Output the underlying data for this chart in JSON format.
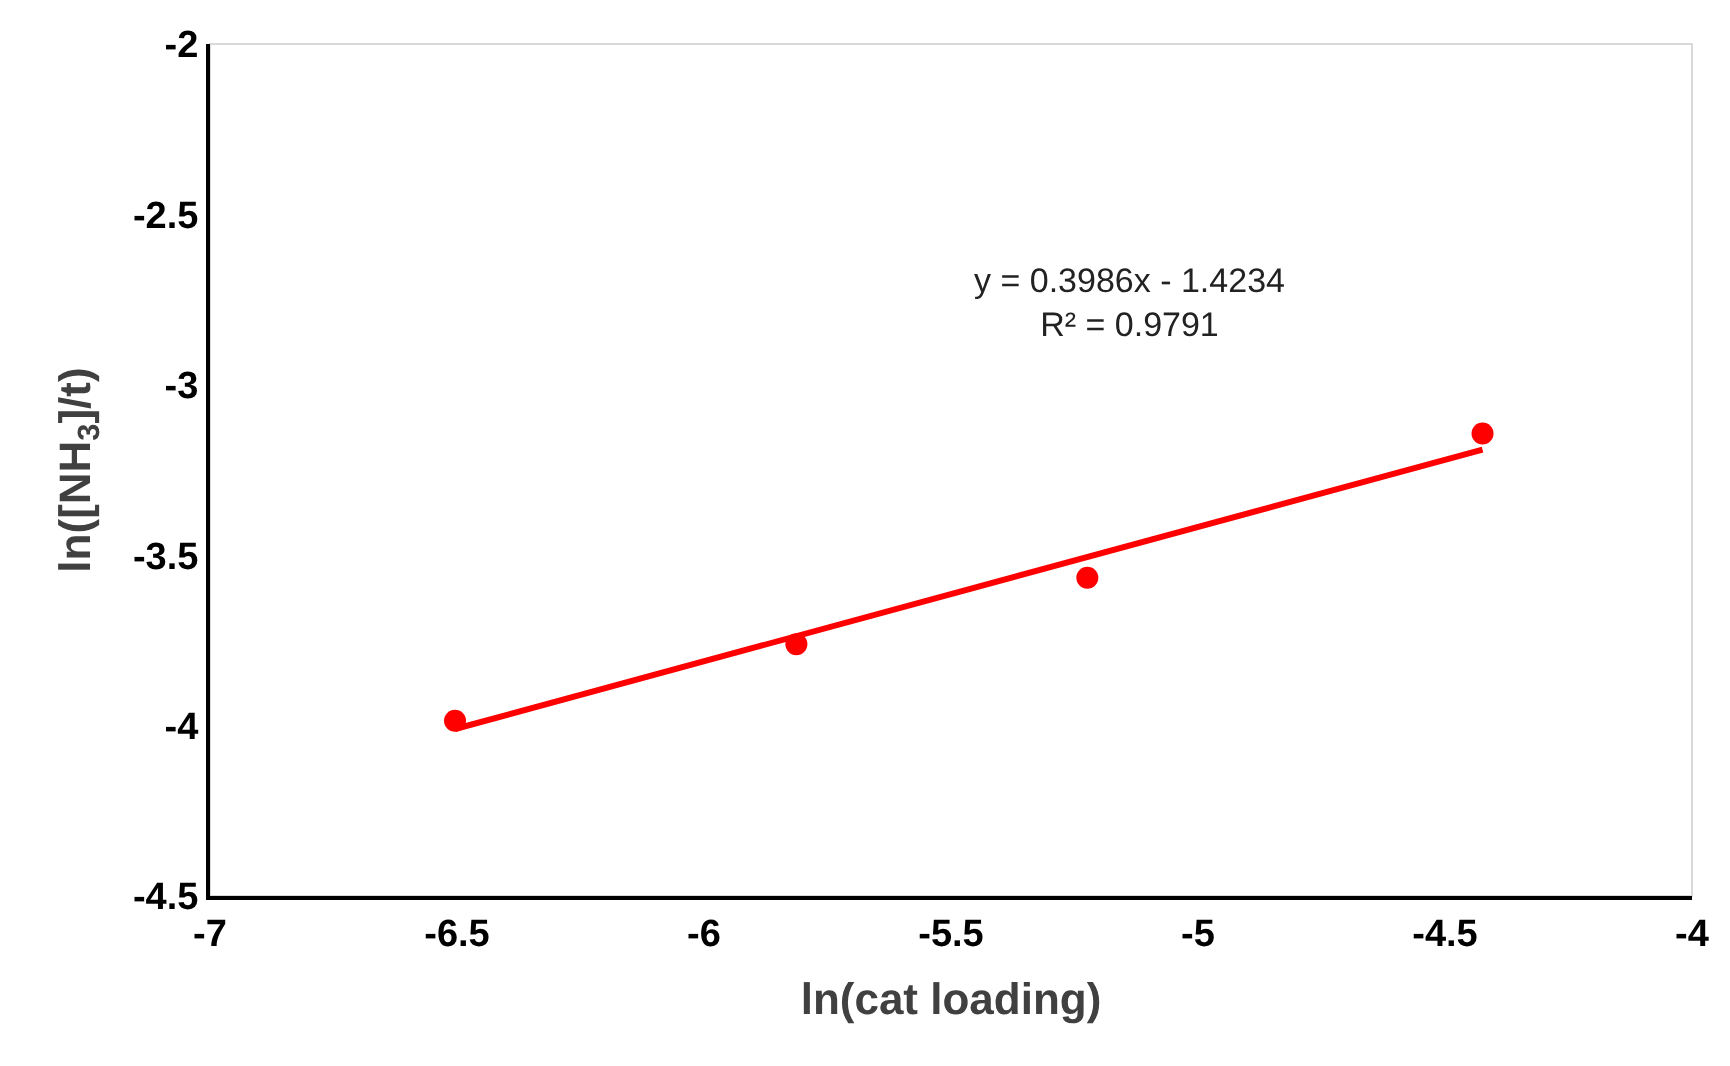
{
  "chart_data": {
    "type": "scatter",
    "xlabel": "ln(cat loading)",
    "ylabel": "ln([NH$_{3}$]/t)",
    "series": [
      {
        "color": "#ff0000",
        "marker": "circle",
        "x": [
          -6.504,
          -5.813,
          -5.224,
          -4.424
        ],
        "values": [
          -3.986,
          -3.761,
          -3.566,
          -3.143
        ]
      },
      {
        "type": "line",
        "color": "#ff0000",
        "marker": "none",
        "line_style": "solid",
        "x": [
          -6.504,
          -4.424
        ],
        "values": [
          -4.01,
          -3.19
        ]
      }
    ],
    "annotations": [
      "y = 0.3986x - 1.4234\nR² = 0.9791"
    ],
    "xlim": [
      -7,
      -4
    ],
    "xticks": [
      -7,
      -6.5,
      -6,
      -5.5,
      -5,
      -4.5,
      -4
    ],
    "ylim": [
      -4.5,
      -2
    ],
    "yticks": [
      -4.5,
      -4,
      -3.5,
      -3,
      -2.5,
      -2
    ],
    "grid": false
  }
}
